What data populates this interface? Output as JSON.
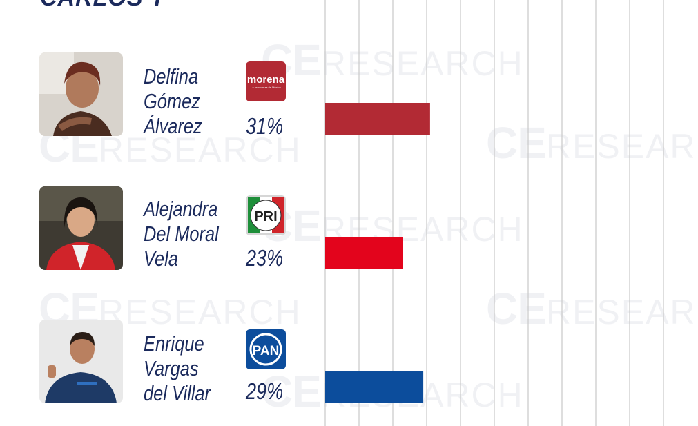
{
  "header": {
    "title": "CARLOS T"
  },
  "watermark": {
    "brand_ce": "CE",
    "brand_rest": "RESEARCH"
  },
  "colors": {
    "grid": "#c9c9c9",
    "text": "#1b2a5c"
  },
  "candidates": [
    {
      "name_lines": [
        "Delfina",
        "Gómez",
        "Álvarez"
      ],
      "party": "morena",
      "party_tagline": "La esperanza de México",
      "logo_icon": "morena-logo-icon",
      "photo_icon": "candidate-photo-icon",
      "pct_label": "31%",
      "color": "#b22a34"
    },
    {
      "name_lines": [
        "Alejandra",
        "Del Moral",
        "Vela"
      ],
      "party": "PRI",
      "logo_icon": "pri-logo-icon",
      "photo_icon": "candidate-photo-icon",
      "pct_label": "23%",
      "color": "#e3041c"
    },
    {
      "name_lines": [
        "Enrique",
        "Vargas",
        "del Villar"
      ],
      "party": "PAN",
      "logo_icon": "pan-logo-icon",
      "photo_icon": "candidate-photo-icon",
      "pct_label": "29%",
      "color": "#0c4d9c"
    }
  ],
  "chart_data": {
    "type": "bar",
    "orientation": "horizontal",
    "categories": [
      "Delfina Gómez Álvarez",
      "Alejandra Del Moral Vela",
      "Enrique Vargas del Villar"
    ],
    "values": [
      31,
      23,
      29
    ],
    "colors": [
      "#b22a34",
      "#e3041c",
      "#0c4d9c"
    ],
    "xlim": [
      0,
      100
    ],
    "grid": true,
    "grid_step": 10
  }
}
